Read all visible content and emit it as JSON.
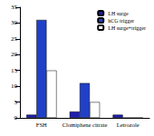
{
  "chart_data": {
    "type": "bar",
    "categories": [
      "FSH",
      "Clomiphene citrate",
      "Letrozole"
    ],
    "series": [
      {
        "name": "LH surge",
        "color": "#1c1cb0",
        "values": [
          1,
          2,
          1
        ]
      },
      {
        "name": "hCG trigger",
        "color": "#2040c8",
        "values": [
          31,
          11,
          0
        ]
      },
      {
        "name": "LH surge+trigger",
        "color": "#ffffff",
        "values": [
          15,
          5,
          0
        ]
      }
    ],
    "ylim": [
      0,
      35
    ],
    "yticks": [
      0,
      5,
      10,
      15,
      20,
      25,
      30,
      35
    ],
    "grid": false,
    "legend": "upper right"
  }
}
